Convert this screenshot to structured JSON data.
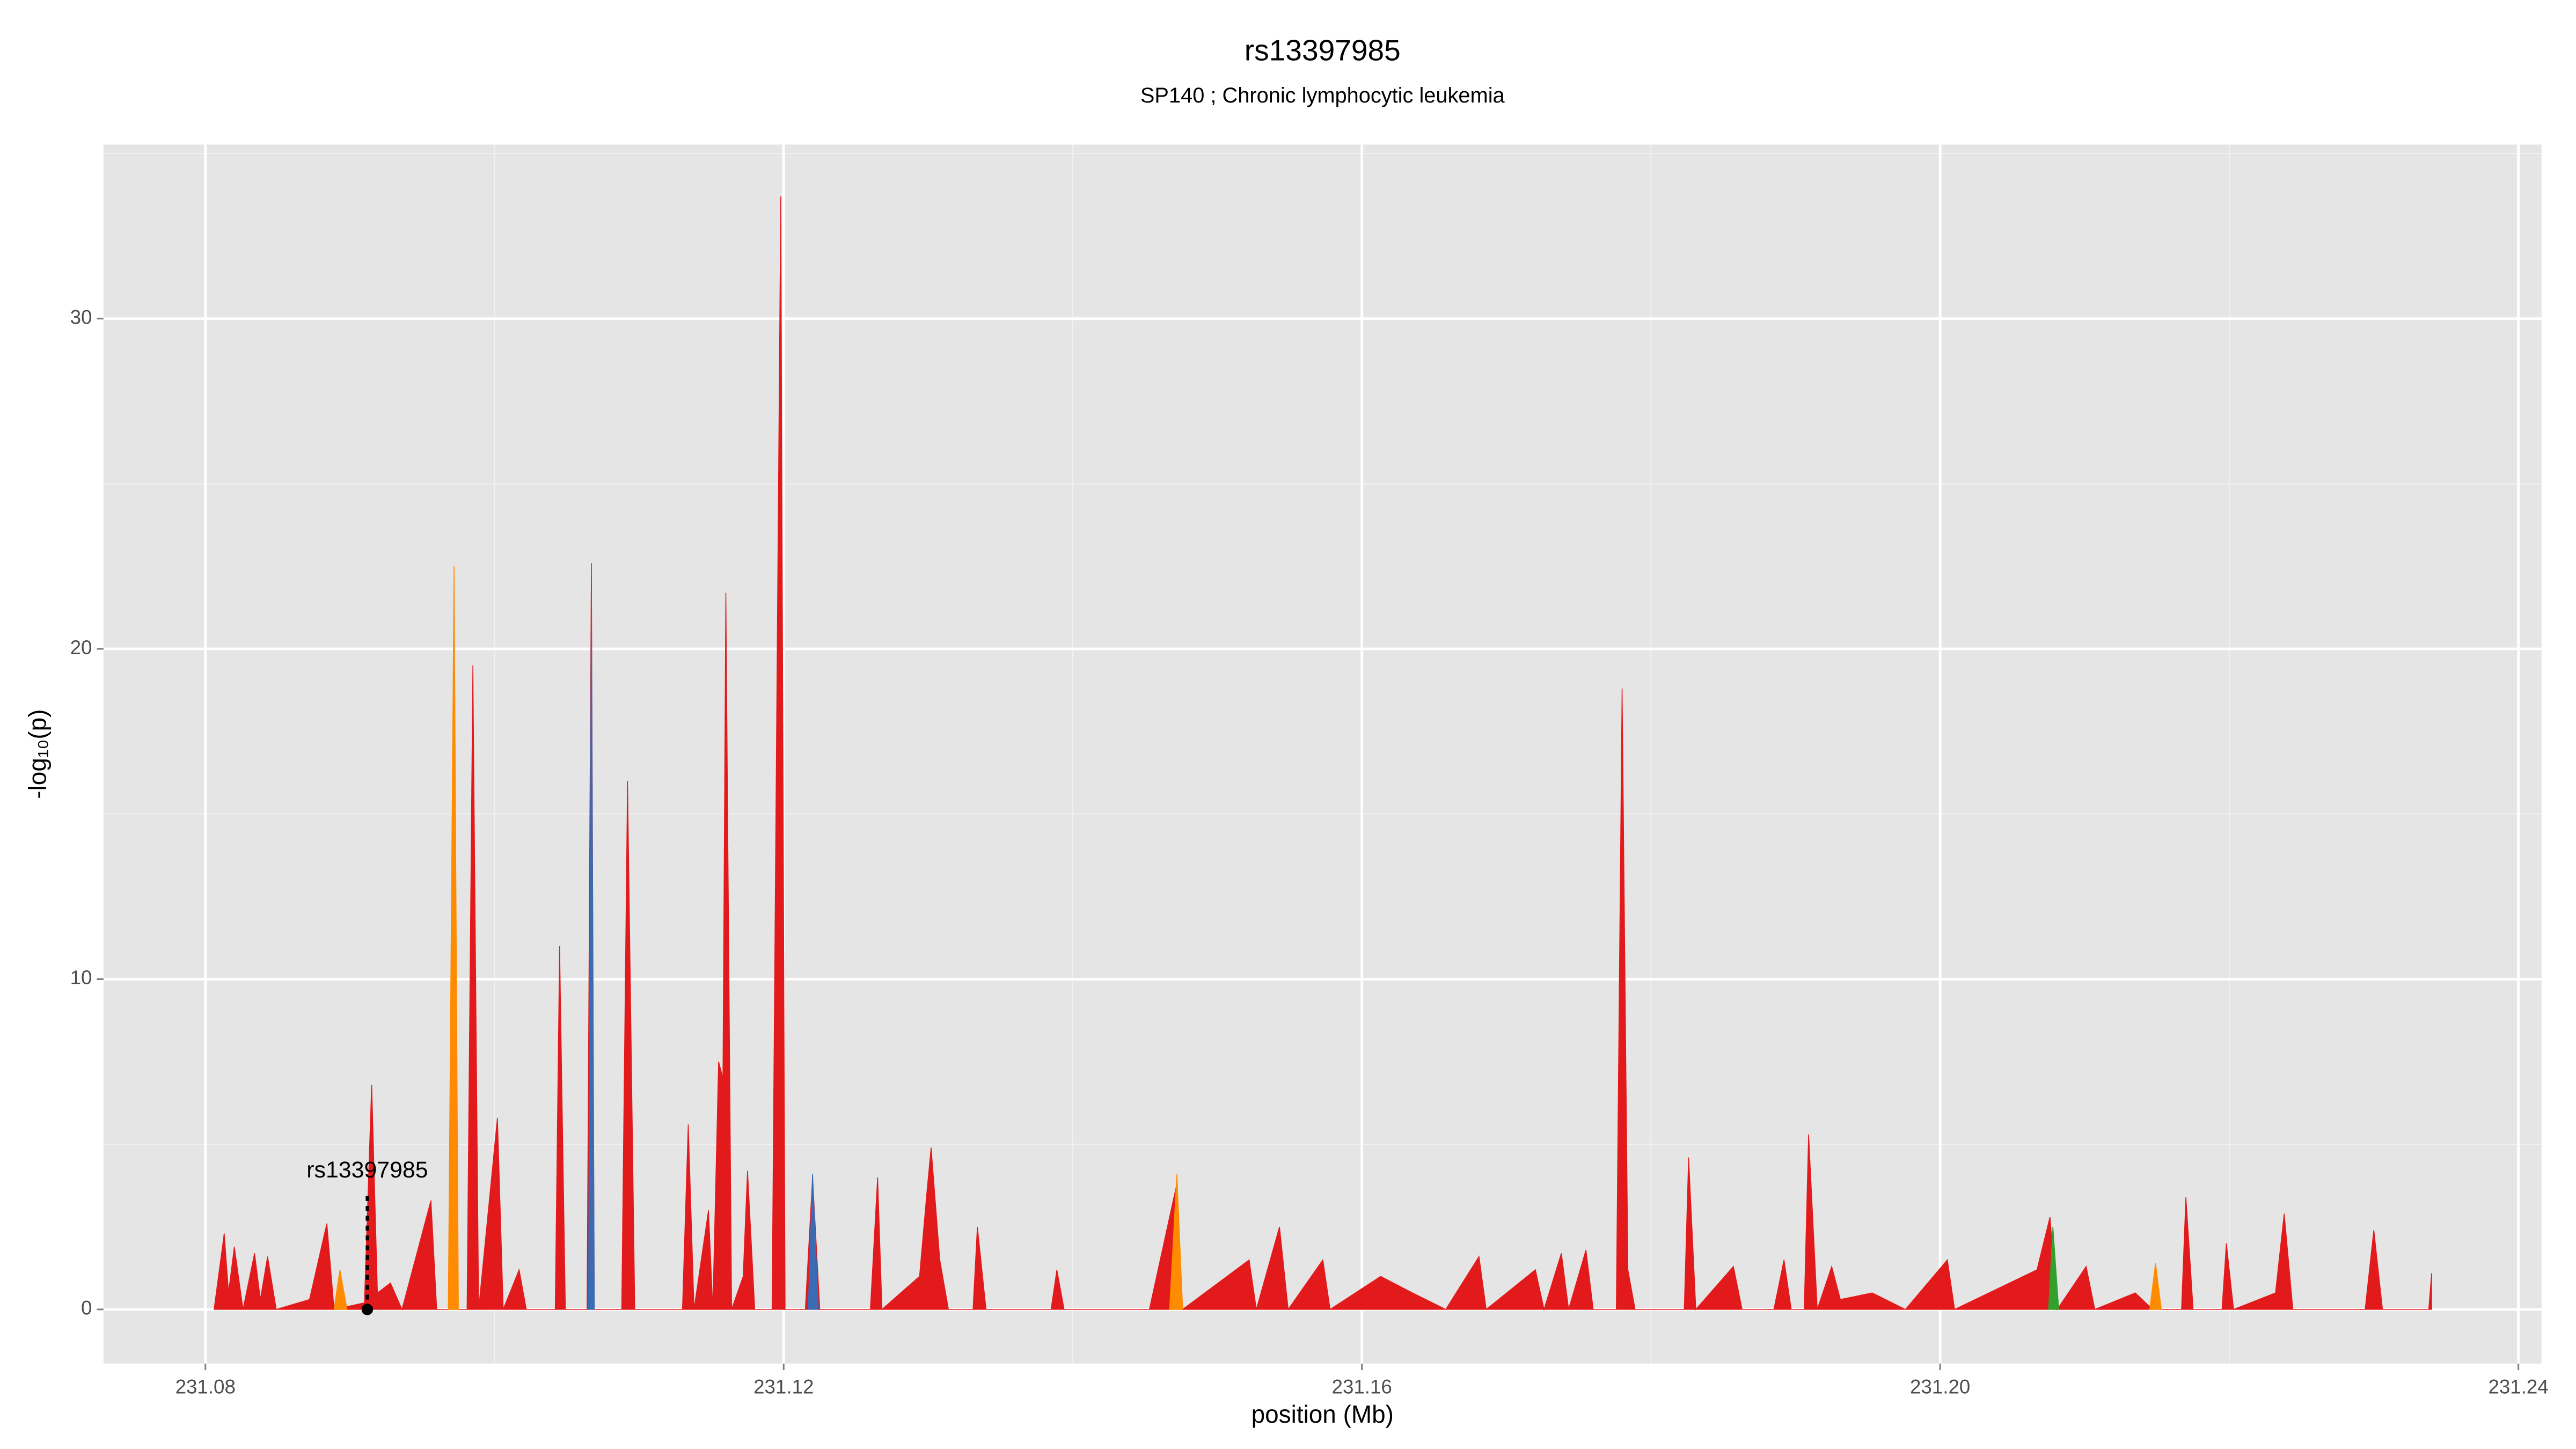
{
  "chart_data": {
    "type": "area",
    "title": "rs13397985",
    "subtitle": "SP140 ; Chronic lymphocytic leukemia",
    "xlabel": "position (Mb)",
    "ylabel": "-log₁₀(p)",
    "xlim": [
      231.07295,
      231.2416
    ],
    "ylim": [
      -1.64,
      35.27
    ],
    "xticks": [
      231.08,
      231.12,
      231.16,
      {
        "value": 231.2,
        "label": "231.20"
      },
      231.24
    ],
    "yticks": [
      0,
      10,
      20,
      30
    ],
    "x_minor_ticks": [
      231.1,
      231.14,
      231.18,
      231.22
    ],
    "y_minor_ticks": [
      5,
      15,
      25,
      35
    ],
    "grid": true,
    "annotation": {
      "text": "rs13397985",
      "x": 231.0912,
      "y": 0
    },
    "series": [
      {
        "color": "#e31a1c",
        "x": [
          231.0806,
          231.0813,
          231.0816,
          231.082,
          231.0826,
          231.0834,
          231.0838,
          231.0843,
          231.0849,
          231.0872,
          231.0884,
          231.0889,
          231.091,
          231.0915,
          231.0919,
          231.0928,
          231.0936,
          231.0956,
          231.096,
          231.0981,
          231.0985,
          231.0989,
          231.1002,
          231.1006,
          231.1017,
          231.1022,
          231.1042,
          231.1045,
          231.1049,
          231.1064,
          231.1067,
          231.1069,
          231.1088,
          231.1092,
          231.1097,
          231.113,
          231.1134,
          231.1138,
          231.1148,
          231.1151,
          231.1155,
          231.1158,
          231.116,
          231.1164,
          231.1172,
          231.1175,
          231.118,
          231.1192,
          231.1198,
          231.1201,
          231.1215,
          231.122,
          231.1225,
          231.126,
          231.1265,
          231.1268,
          231.1294,
          231.1299,
          231.1302,
          231.1308,
          231.1314,
          231.1331,
          231.1334,
          231.134,
          231.1385,
          231.1389,
          231.1394,
          231.1453,
          231.1472,
          231.1476,
          231.1522,
          231.1527,
          231.1543,
          231.1549,
          231.1573,
          231.1578,
          231.1613,
          231.1635,
          231.1658,
          231.1681,
          231.1686,
          231.172,
          231.1726,
          231.1738,
          231.1743,
          231.1755,
          231.176,
          231.1776,
          231.178,
          231.1784,
          231.1789,
          231.1823,
          231.1826,
          231.1831,
          231.1857,
          231.1863,
          231.1885,
          231.1892,
          231.1897,
          231.1906,
          231.1909,
          231.1915,
          231.1925,
          231.1931,
          231.1953,
          231.1976,
          231.2005,
          231.201,
          231.2067,
          231.2076,
          231.2081,
          231.2101,
          231.2107,
          231.2135,
          231.2147,
          231.2167,
          231.217,
          231.2175,
          231.2195,
          231.2198,
          231.2203,
          231.2232,
          231.2238,
          231.2244,
          231.2294,
          231.23,
          231.2306,
          231.2338,
          231.234
        ],
        "values": [
          0,
          2.3,
          0.5,
          1.9,
          0,
          1.7,
          0.3,
          1.6,
          0,
          0.3,
          2.6,
          0,
          0.2,
          6.8,
          0.5,
          0.8,
          0,
          3.3,
          0,
          0,
          19.5,
          0,
          5.8,
          0,
          1.2,
          0,
          0,
          11,
          0,
          0,
          22.6,
          0,
          0,
          16,
          0,
          0,
          5.6,
          0,
          3,
          0,
          7.5,
          7,
          21.7,
          0,
          1,
          4.2,
          0,
          0,
          33.7,
          0,
          0,
          4,
          0,
          0,
          4,
          0,
          1,
          3.5,
          4.9,
          1.5,
          0,
          0,
          2.5,
          0,
          0,
          1.2,
          0,
          0,
          3.8,
          0,
          1.5,
          0,
          2.5,
          0,
          1.5,
          0,
          1,
          0.5,
          0,
          1.6,
          0,
          1.2,
          0,
          1.7,
          0,
          1.8,
          0,
          0,
          18.8,
          1.2,
          0,
          0,
          4.6,
          0,
          1.3,
          0,
          0,
          1.5,
          0,
          0,
          5.3,
          0,
          1.3,
          0.3,
          0.5,
          0,
          1.5,
          0,
          1.2,
          2.8,
          0,
          1.3,
          0,
          0.5,
          0,
          0,
          3.4,
          0,
          0,
          2,
          0,
          0.5,
          2.9,
          0,
          0,
          2.4,
          0,
          0,
          1.1
        ]
      },
      {
        "color": "#ff8c00",
        "x": [
          231.0889,
          231.0893,
          231.0898,
          231.093,
          231.0968,
          231.0972,
          231.0975,
          231.12,
          231.1467,
          231.1472,
          231.1476,
          231.18,
          231.2145,
          231.2149,
          231.2153
        ],
        "values": [
          0,
          1.2,
          0,
          null,
          0,
          22.5,
          0,
          null,
          0,
          4.1,
          0,
          null,
          0,
          1.4,
          0
        ]
      },
      {
        "color": "#3a6bb5",
        "x": [
          231.1065,
          231.1067,
          231.1069,
          231.115,
          231.1217,
          231.122,
          231.1224
        ],
        "values": [
          0,
          21.8,
          0,
          null,
          0,
          4.1,
          0
        ]
      },
      {
        "color": "#33a02c",
        "x": [
          231.2075,
          231.2078,
          231.2082
        ],
        "values": [
          0,
          2.5,
          0
        ]
      }
    ]
  }
}
